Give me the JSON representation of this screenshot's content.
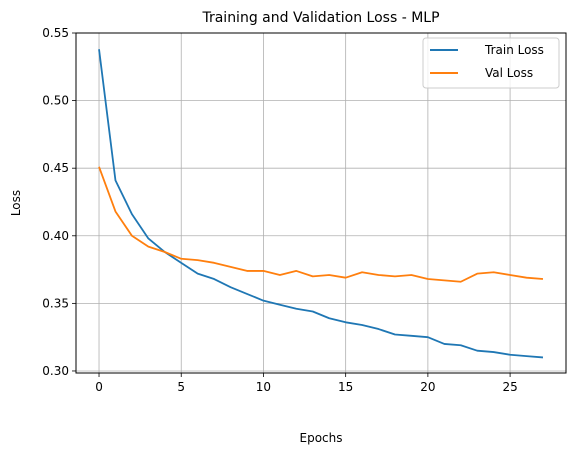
{
  "chart_data": {
    "type": "line",
    "title": "Training and Validation Loss - MLP",
    "xlabel": "Epochs",
    "ylabel": "Loss",
    "xlim": [
      -1.4,
      28.4
    ],
    "ylim": [
      0.2985,
      0.55
    ],
    "xticks": [
      0,
      5,
      10,
      15,
      20,
      25
    ],
    "xtick_labels": [
      "0",
      "5",
      "10",
      "15",
      "20",
      "25"
    ],
    "yticks": [
      0.3,
      0.35,
      0.4,
      0.45,
      0.5,
      0.55
    ],
    "ytick_labels": [
      "0.30",
      "0.35",
      "0.40",
      "0.45",
      "0.50",
      "0.55"
    ],
    "grid": true,
    "legend_position": "top-right",
    "x": [
      0,
      1,
      2,
      3,
      4,
      5,
      6,
      7,
      8,
      9,
      10,
      11,
      12,
      13,
      14,
      15,
      16,
      17,
      18,
      19,
      20,
      21,
      22,
      23,
      24,
      25,
      26,
      27
    ],
    "series": [
      {
        "name": "Train Loss",
        "color": "#1f77b4",
        "values": [
          0.538,
          0.441,
          0.416,
          0.398,
          0.388,
          0.38,
          0.372,
          0.368,
          0.362,
          0.357,
          0.352,
          0.349,
          0.346,
          0.344,
          0.339,
          0.336,
          0.334,
          0.331,
          0.327,
          0.326,
          0.325,
          0.32,
          0.319,
          0.315,
          0.314,
          0.312,
          0.311,
          0.31
        ]
      },
      {
        "name": "Val Loss",
        "color": "#ff7f0e",
        "values": [
          0.451,
          0.418,
          0.4,
          0.392,
          0.388,
          0.383,
          0.382,
          0.38,
          0.377,
          0.374,
          0.374,
          0.371,
          0.374,
          0.37,
          0.371,
          0.369,
          0.373,
          0.371,
          0.37,
          0.371,
          0.368,
          0.367,
          0.366,
          0.372,
          0.373,
          0.371,
          0.369,
          0.368
        ]
      }
    ]
  }
}
